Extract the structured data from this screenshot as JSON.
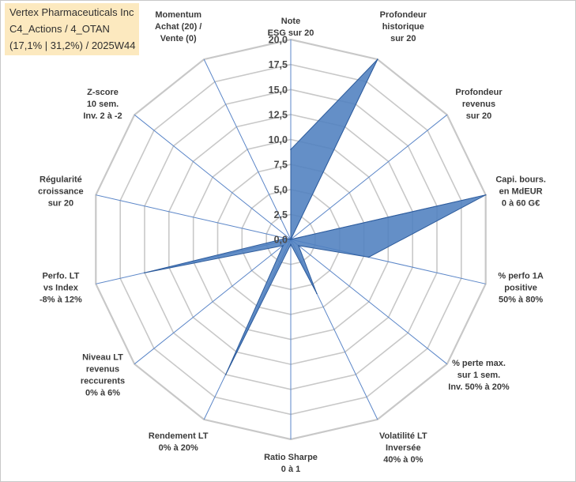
{
  "header": {
    "line1": "Vertex Pharmaceuticals Inc",
    "line2": "C4_Actions / 4_OTAN",
    "line3": "(17,1% | 31,2%) / 2025W44"
  },
  "colors": {
    "fill": "#4f7fbf",
    "stroke": "#2e5c9c",
    "grid": "#c8c8c8",
    "spoke": "#5b86c8",
    "header_bg": "#fce9bf"
  },
  "chart_data": {
    "type": "radar",
    "rmin": 0,
    "rmax": 20,
    "tick_values": [
      0,
      2.5,
      5,
      7.5,
      10,
      12.5,
      15,
      17.5,
      20
    ],
    "tick_labels": [
      "0,0",
      "2,5",
      "5,0",
      "7,5",
      "10,0",
      "12,5",
      "15,0",
      "17,5",
      "20,0"
    ],
    "axes": [
      [
        "Note",
        "ESG sur 20"
      ],
      [
        "Profondeur",
        "historique",
        "sur 20"
      ],
      [
        "Profondeur",
        "revenus",
        "sur 20"
      ],
      [
        "Capi. bours.",
        "en MdEUR",
        "0 à 60 G€"
      ],
      [
        "% perfo 1A",
        "positive",
        "50% à 80%"
      ],
      [
        "% perte max.",
        "sur 1 sem.",
        "Inv. 50% à 20%"
      ],
      [
        "Volatilité LT",
        "Inversée",
        "40% à 0%"
      ],
      [
        "Ratio Sharpe",
        "0 à 1"
      ],
      [
        "Rendement LT",
        "0% à 20%"
      ],
      [
        "Niveau LT",
        "revenus",
        "reccurents",
        "0% à 6%"
      ],
      [
        "Perfo. LT",
        "vs Index",
        "-8% à 12%"
      ],
      [
        "Régularité",
        "croissance",
        "sur 20"
      ],
      [
        "Z-score",
        "10 sem.",
        "Inv. 2 à -2"
      ],
      [
        "Momentum",
        "Achat (20) /",
        "Vente (0)"
      ]
    ],
    "series": [
      {
        "values": [
          9,
          20,
          0,
          20,
          8,
          1,
          6,
          0.5,
          15,
          1,
          15,
          0.5,
          0,
          0
        ]
      }
    ],
    "grid": true,
    "legend": "none"
  }
}
